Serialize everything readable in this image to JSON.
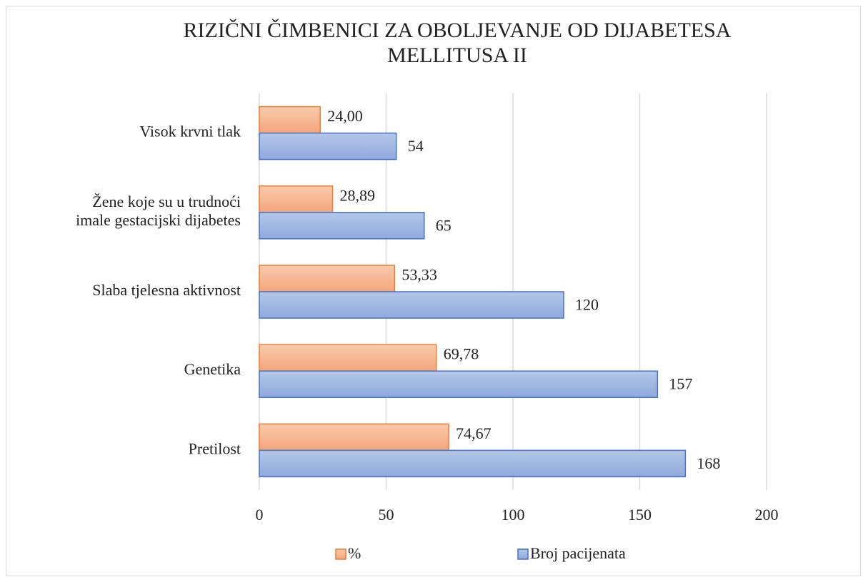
{
  "chart_data": {
    "type": "bar",
    "orientation": "horizontal",
    "title": "RIZIČNI ČIMBENICI ZA OBOLJEVANJE OD DIJABETESA\nMELLITUSA II",
    "categories": [
      "Visok krvni tlak",
      "Žene koje su u trudnoći\nimale gestacijski dijabetes",
      "Slaba tjelesna aktivnost",
      "Genetika",
      "Pretilost"
    ],
    "series": [
      {
        "name": "%",
        "color": "#ed7d31",
        "values": [
          24,
          28.89,
          53.33,
          69.78,
          74.67
        ],
        "value_labels": [
          "24,00",
          "28,89",
          "53,33",
          "69,78",
          "74,67"
        ]
      },
      {
        "name": "Broj pacijenata",
        "color": "#4472c4",
        "values": [
          54,
          65,
          120,
          157,
          168
        ]
      }
    ],
    "xlim": [
      0,
      200
    ],
    "xticks": [
      0,
      50,
      100,
      150,
      200
    ],
    "grid": true,
    "legend": "bottom"
  }
}
